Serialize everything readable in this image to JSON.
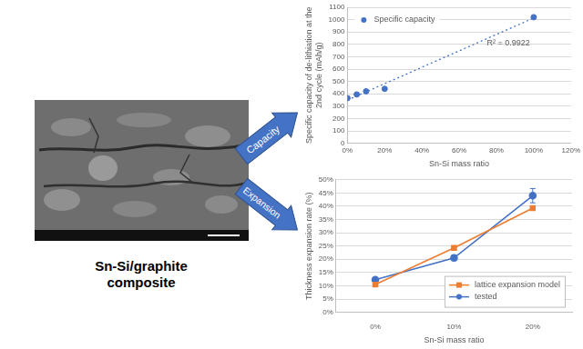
{
  "figure": {
    "label": [
      "Sn-Si/graphite",
      "composite"
    ],
    "arrows": [
      "Capacity",
      "Expansion"
    ]
  },
  "chart_data": [
    {
      "type": "scatter",
      "xlabel": "Sn-Si mass ratio",
      "ylabel": [
        "Specific capacity of de-lithiation at the",
        "2nd cycle (mAh/g)"
      ],
      "series": [
        {
          "name": "Specific capacity",
          "color": "#4472c4",
          "marker": "circle",
          "x": [
            0,
            5,
            10,
            20,
            100
          ],
          "values": [
            365,
            395,
            420,
            440,
            1020
          ]
        }
      ],
      "trendline": {
        "x": [
          0,
          100
        ],
        "values": [
          349,
          1013
        ],
        "color": "#4472c4",
        "line_style": "dotted",
        "label": "R² = 0.9922"
      },
      "xlim": [
        0,
        120
      ],
      "xticks": [
        {
          "value": 0,
          "label": "0%"
        },
        {
          "value": 20,
          "label": "20%"
        },
        {
          "value": 40,
          "label": "40%"
        },
        {
          "value": 60,
          "label": "60%"
        },
        {
          "value": 80,
          "label": "80%"
        },
        {
          "value": 100,
          "label": "100%"
        },
        {
          "value": 120,
          "label": "120%"
        }
      ],
      "ylim": [
        0,
        1100
      ],
      "yticks": [
        0,
        100,
        200,
        300,
        400,
        500,
        600,
        700,
        800,
        900,
        1000,
        1100
      ],
      "grid": true,
      "legend": "upper left"
    },
    {
      "type": "line",
      "xlabel": "Sn-Si mass ratio",
      "ylabel": "Thickness expansion rate (%)",
      "categories": [
        "0%",
        "10%",
        "20%"
      ],
      "series": [
        {
          "name": "lattice expansion model",
          "color": "#ed7d31",
          "marker": "square",
          "line_style": "solid",
          "values": [
            10.5,
            24.3,
            39.3
          ]
        },
        {
          "name": "tested",
          "color": "#4472c4",
          "marker": "circle",
          "line_style": "solid",
          "values": [
            12.3,
            20.5,
            44
          ],
          "errors": [
            0.6,
            1.0,
            2.7
          ]
        }
      ],
      "ylim": [
        0,
        50
      ],
      "yticks": [
        {
          "value": 0,
          "label": "0%"
        },
        {
          "value": 5,
          "label": "5%"
        },
        {
          "value": 10,
          "label": "10%"
        },
        {
          "value": 15,
          "label": "15%"
        },
        {
          "value": 20,
          "label": "20%"
        },
        {
          "value": 25,
          "label": "25%"
        },
        {
          "value": 30,
          "label": "30%"
        },
        {
          "value": 35,
          "label": "35%"
        },
        {
          "value": 40,
          "label": "40%"
        },
        {
          "value": 45,
          "label": "45%"
        },
        {
          "value": 50,
          "label": "50%"
        }
      ],
      "grid": true,
      "legend": "lower right"
    }
  ]
}
